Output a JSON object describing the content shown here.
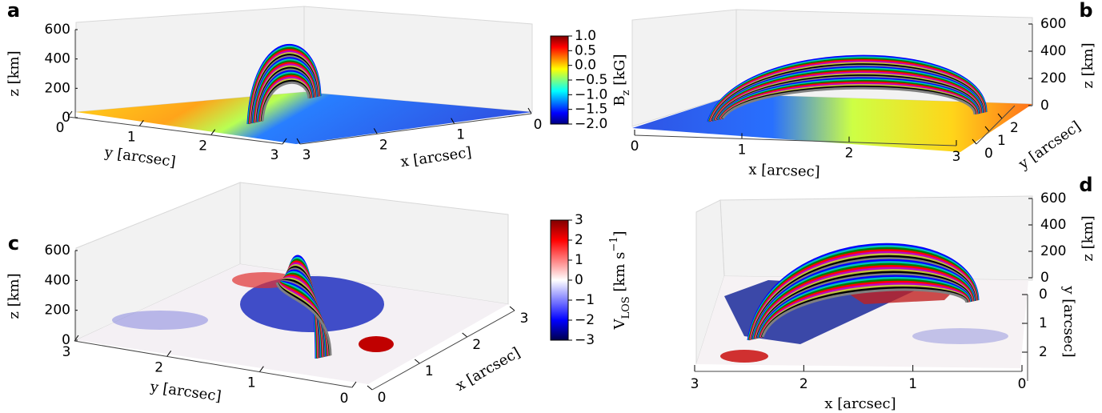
{
  "chart_data": [
    {
      "type": "surface3d",
      "panel_label": "a",
      "xlabel": "x [arcsec]",
      "ylabel": "y [arcsec]",
      "zlabel": "z [km]",
      "xlim": [
        0,
        3
      ],
      "xticks": [
        0,
        1,
        2,
        3
      ],
      "ylim": [
        0,
        3
      ],
      "yticks": [
        0,
        1,
        2,
        3
      ],
      "zlim": [
        0,
        600
      ],
      "zticks": [
        0,
        200,
        400,
        600
      ],
      "colorbar": {
        "label": [
          {
            "text": "B"
          },
          {
            "text": "z",
            "style": "sub"
          },
          {
            "text": " [kG]"
          }
        ],
        "lim": [
          -2,
          1
        ],
        "ticks": [
          {
            "value": -2,
            "label": "−2.0"
          },
          {
            "value": -1.5,
            "label": "−1.5"
          },
          {
            "value": -1,
            "label": "−1.0"
          },
          {
            "value": -0.5,
            "label": "−0.5"
          },
          {
            "value": 0,
            "label": "0.0"
          },
          0.5,
          {
            "value": 1,
            "label": "1.0"
          }
        ],
        "colors": [
          "#00007f",
          "#0000ff",
          "#007fff",
          "#00ffff",
          "#7fff7f",
          "#ffff00",
          "#ff7f00",
          "#ff0000",
          "#7f0000"
        ]
      }
    },
    {
      "type": "surface3d",
      "panel_label": "b",
      "xlabel": "x [arcsec]",
      "ylabel": "y [arcsec]",
      "zlabel": "z [km]",
      "xlim": [
        0,
        3
      ],
      "xticks": [
        0,
        1,
        2,
        3
      ],
      "ylim": [
        0,
        3
      ],
      "yticks": [
        0,
        1,
        2
      ],
      "zlim": [
        0,
        600
      ],
      "zticks": [
        0,
        200,
        400,
        600
      ]
    },
    {
      "type": "surface3d",
      "panel_label": "c",
      "xlabel": "x [arcsec]",
      "ylabel": "y [arcsec]",
      "zlabel": "z [km]",
      "xlim": [
        0,
        3
      ],
      "xticks": [
        0,
        1,
        2,
        3
      ],
      "ylim": [
        0,
        3
      ],
      "yticks": [
        3,
        2,
        1,
        0
      ],
      "zlim": [
        0,
        600
      ],
      "zticks": [
        0,
        200,
        400,
        600
      ],
      "colorbar": {
        "label": [
          {
            "text": "V"
          },
          {
            "text": "LOS",
            "style": "sub"
          },
          {
            "text": " [km s"
          },
          {
            "text": "−1",
            "style": "sup"
          },
          {
            "text": "]"
          }
        ],
        "lim": [
          -3,
          3
        ],
        "ticks": [
          {
            "value": -3,
            "label": "−3"
          },
          {
            "value": -2,
            "label": "−2"
          },
          {
            "value": -1,
            "label": "−1"
          },
          0,
          1,
          2,
          3
        ],
        "colors": [
          "#00004c",
          "#0000ff",
          "#8080ff",
          "#ffffff",
          "#ff8080",
          "#ff0000",
          "#800000"
        ]
      }
    },
    {
      "type": "surface3d",
      "panel_label": "d",
      "xlabel": "x [arcsec]",
      "ylabel": "y [arcsec]",
      "zlabel": "z [km]",
      "xlim": [
        0,
        3
      ],
      "xticks": [
        3,
        2,
        1,
        0
      ],
      "ylim": [
        0,
        3
      ],
      "yticks": [
        0,
        1,
        2
      ],
      "zlim": [
        0,
        600
      ],
      "zticks": [
        0,
        200,
        400,
        600
      ]
    }
  ],
  "fieldline_colors": [
    "#0000ff",
    "#00bfbf",
    "#008000",
    "#ff0000",
    "#bf00bf",
    "#bfbf3f",
    "#000000",
    "#808080"
  ]
}
